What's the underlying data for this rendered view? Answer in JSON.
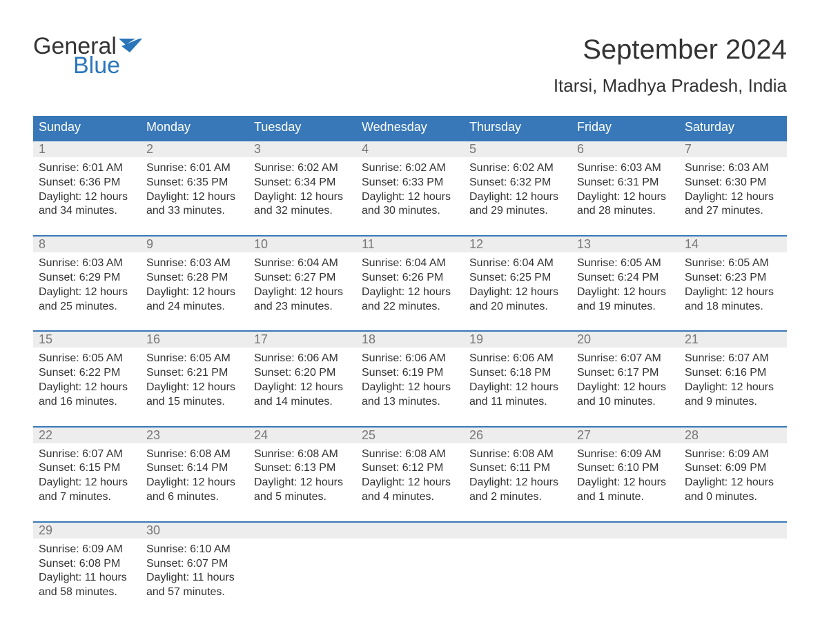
{
  "brand": {
    "word1": "General",
    "word2": "Blue",
    "text_color": "#333333",
    "accent_color": "#2a76bb"
  },
  "title": {
    "month_year": "September 2024",
    "location": "Itarsi, Madhya Pradesh, India"
  },
  "colors": {
    "header_bg": "#3878b8",
    "header_text": "#ffffff",
    "strip_bg": "#ededed",
    "daynum_text": "#777777",
    "body_text": "#333333",
    "row_border": "#3878b8",
    "page_bg": "#ffffff"
  },
  "weekday_labels": [
    "Sunday",
    "Monday",
    "Tuesday",
    "Wednesday",
    "Thursday",
    "Friday",
    "Saturday"
  ],
  "weeks": [
    [
      {
        "n": "1",
        "sunrise": "Sunrise: 6:01 AM",
        "sunset": "Sunset: 6:36 PM",
        "daylight": "Daylight: 12 hours and 34 minutes."
      },
      {
        "n": "2",
        "sunrise": "Sunrise: 6:01 AM",
        "sunset": "Sunset: 6:35 PM",
        "daylight": "Daylight: 12 hours and 33 minutes."
      },
      {
        "n": "3",
        "sunrise": "Sunrise: 6:02 AM",
        "sunset": "Sunset: 6:34 PM",
        "daylight": "Daylight: 12 hours and 32 minutes."
      },
      {
        "n": "4",
        "sunrise": "Sunrise: 6:02 AM",
        "sunset": "Sunset: 6:33 PM",
        "daylight": "Daylight: 12 hours and 30 minutes."
      },
      {
        "n": "5",
        "sunrise": "Sunrise: 6:02 AM",
        "sunset": "Sunset: 6:32 PM",
        "daylight": "Daylight: 12 hours and 29 minutes."
      },
      {
        "n": "6",
        "sunrise": "Sunrise: 6:03 AM",
        "sunset": "Sunset: 6:31 PM",
        "daylight": "Daylight: 12 hours and 28 minutes."
      },
      {
        "n": "7",
        "sunrise": "Sunrise: 6:03 AM",
        "sunset": "Sunset: 6:30 PM",
        "daylight": "Daylight: 12 hours and 27 minutes."
      }
    ],
    [
      {
        "n": "8",
        "sunrise": "Sunrise: 6:03 AM",
        "sunset": "Sunset: 6:29 PM",
        "daylight": "Daylight: 12 hours and 25 minutes."
      },
      {
        "n": "9",
        "sunrise": "Sunrise: 6:03 AM",
        "sunset": "Sunset: 6:28 PM",
        "daylight": "Daylight: 12 hours and 24 minutes."
      },
      {
        "n": "10",
        "sunrise": "Sunrise: 6:04 AM",
        "sunset": "Sunset: 6:27 PM",
        "daylight": "Daylight: 12 hours and 23 minutes."
      },
      {
        "n": "11",
        "sunrise": "Sunrise: 6:04 AM",
        "sunset": "Sunset: 6:26 PM",
        "daylight": "Daylight: 12 hours and 22 minutes."
      },
      {
        "n": "12",
        "sunrise": "Sunrise: 6:04 AM",
        "sunset": "Sunset: 6:25 PM",
        "daylight": "Daylight: 12 hours and 20 minutes."
      },
      {
        "n": "13",
        "sunrise": "Sunrise: 6:05 AM",
        "sunset": "Sunset: 6:24 PM",
        "daylight": "Daylight: 12 hours and 19 minutes."
      },
      {
        "n": "14",
        "sunrise": "Sunrise: 6:05 AM",
        "sunset": "Sunset: 6:23 PM",
        "daylight": "Daylight: 12 hours and 18 minutes."
      }
    ],
    [
      {
        "n": "15",
        "sunrise": "Sunrise: 6:05 AM",
        "sunset": "Sunset: 6:22 PM",
        "daylight": "Daylight: 12 hours and 16 minutes."
      },
      {
        "n": "16",
        "sunrise": "Sunrise: 6:05 AM",
        "sunset": "Sunset: 6:21 PM",
        "daylight": "Daylight: 12 hours and 15 minutes."
      },
      {
        "n": "17",
        "sunrise": "Sunrise: 6:06 AM",
        "sunset": "Sunset: 6:20 PM",
        "daylight": "Daylight: 12 hours and 14 minutes."
      },
      {
        "n": "18",
        "sunrise": "Sunrise: 6:06 AM",
        "sunset": "Sunset: 6:19 PM",
        "daylight": "Daylight: 12 hours and 13 minutes."
      },
      {
        "n": "19",
        "sunrise": "Sunrise: 6:06 AM",
        "sunset": "Sunset: 6:18 PM",
        "daylight": "Daylight: 12 hours and 11 minutes."
      },
      {
        "n": "20",
        "sunrise": "Sunrise: 6:07 AM",
        "sunset": "Sunset: 6:17 PM",
        "daylight": "Daylight: 12 hours and 10 minutes."
      },
      {
        "n": "21",
        "sunrise": "Sunrise: 6:07 AM",
        "sunset": "Sunset: 6:16 PM",
        "daylight": "Daylight: 12 hours and 9 minutes."
      }
    ],
    [
      {
        "n": "22",
        "sunrise": "Sunrise: 6:07 AM",
        "sunset": "Sunset: 6:15 PM",
        "daylight": "Daylight: 12 hours and 7 minutes."
      },
      {
        "n": "23",
        "sunrise": "Sunrise: 6:08 AM",
        "sunset": "Sunset: 6:14 PM",
        "daylight": "Daylight: 12 hours and 6 minutes."
      },
      {
        "n": "24",
        "sunrise": "Sunrise: 6:08 AM",
        "sunset": "Sunset: 6:13 PM",
        "daylight": "Daylight: 12 hours and 5 minutes."
      },
      {
        "n": "25",
        "sunrise": "Sunrise: 6:08 AM",
        "sunset": "Sunset: 6:12 PM",
        "daylight": "Daylight: 12 hours and 4 minutes."
      },
      {
        "n": "26",
        "sunrise": "Sunrise: 6:08 AM",
        "sunset": "Sunset: 6:11 PM",
        "daylight": "Daylight: 12 hours and 2 minutes."
      },
      {
        "n": "27",
        "sunrise": "Sunrise: 6:09 AM",
        "sunset": "Sunset: 6:10 PM",
        "daylight": "Daylight: 12 hours and 1 minute."
      },
      {
        "n": "28",
        "sunrise": "Sunrise: 6:09 AM",
        "sunset": "Sunset: 6:09 PM",
        "daylight": "Daylight: 12 hours and 0 minutes."
      }
    ],
    [
      {
        "n": "29",
        "sunrise": "Sunrise: 6:09 AM",
        "sunset": "Sunset: 6:08 PM",
        "daylight": "Daylight: 11 hours and 58 minutes."
      },
      {
        "n": "30",
        "sunrise": "Sunrise: 6:10 AM",
        "sunset": "Sunset: 6:07 PM",
        "daylight": "Daylight: 11 hours and 57 minutes."
      },
      {
        "n": "",
        "sunrise": "",
        "sunset": "",
        "daylight": ""
      },
      {
        "n": "",
        "sunrise": "",
        "sunset": "",
        "daylight": ""
      },
      {
        "n": "",
        "sunrise": "",
        "sunset": "",
        "daylight": ""
      },
      {
        "n": "",
        "sunrise": "",
        "sunset": "",
        "daylight": ""
      },
      {
        "n": "",
        "sunrise": "",
        "sunset": "",
        "daylight": ""
      }
    ]
  ]
}
